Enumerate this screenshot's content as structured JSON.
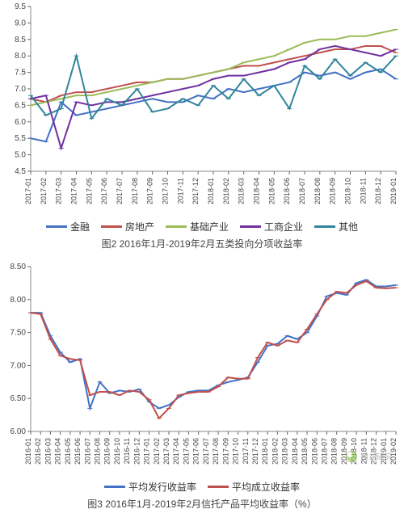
{
  "chart1": {
    "type": "line",
    "title": "图2 2016年1月-2019年2月五类投向分项收益率",
    "title_fontsize": 12,
    "background_color": "#ffffff",
    "grid_color": "#e0e0e0",
    "axis_color": "#888888",
    "line_width": 2,
    "marker_size": 3,
    "ylim": [
      4.5,
      9.5
    ],
    "ytick_step": 0.5,
    "y_decimals": 1,
    "x_rotation": -90,
    "categories": [
      "2017-01",
      "2017-02",
      "2017-03",
      "2017-04",
      "2017-05",
      "2017-06",
      "2017-07",
      "2017-08",
      "2017-09",
      "2017-10",
      "2017-11",
      "2017-12",
      "2018-01",
      "2018-02",
      "2018-03",
      "2018-04",
      "2018-05",
      "2018-06",
      "2018-07",
      "2018-08",
      "2018-09",
      "2018-10",
      "2018-11",
      "2018-12",
      "2019-01"
    ],
    "series": [
      {
        "name": "金融",
        "color": "#4472c4",
        "marker": "dash",
        "values": [
          5.5,
          5.4,
          6.6,
          6.2,
          6.3,
          6.4,
          6.5,
          6.6,
          6.7,
          6.6,
          6.6,
          6.8,
          6.7,
          7.0,
          6.9,
          7.0,
          7.1,
          7.2,
          7.5,
          7.4,
          7.5,
          7.3,
          7.5,
          7.6,
          7.3
        ]
      },
      {
        "name": "房地产",
        "color": "#c0504d",
        "marker": "dash",
        "values": [
          6.7,
          6.6,
          6.8,
          6.9,
          6.9,
          7.0,
          7.1,
          7.2,
          7.2,
          7.3,
          7.3,
          7.4,
          7.5,
          7.6,
          7.7,
          7.7,
          7.8,
          7.9,
          8.0,
          8.1,
          8.2,
          8.2,
          8.3,
          8.3,
          8.1
        ]
      },
      {
        "name": "基础产业",
        "color": "#9bbb59",
        "marker": "dash",
        "values": [
          6.5,
          6.6,
          6.7,
          6.8,
          6.8,
          6.9,
          7.0,
          7.1,
          7.2,
          7.3,
          7.3,
          7.4,
          7.5,
          7.6,
          7.8,
          7.9,
          8.0,
          8.2,
          8.4,
          8.5,
          8.5,
          8.6,
          8.6,
          8.7,
          8.8
        ]
      },
      {
        "name": "工商企业",
        "color": "#7030a0",
        "marker": "dash",
        "values": [
          6.7,
          6.8,
          5.2,
          6.6,
          6.5,
          6.6,
          6.6,
          6.7,
          6.8,
          6.9,
          7.0,
          7.1,
          7.3,
          7.4,
          7.4,
          7.5,
          7.6,
          7.8,
          7.9,
          8.2,
          8.3,
          8.2,
          8.1,
          8.0,
          8.2
        ]
      },
      {
        "name": "其他",
        "color": "#31859c",
        "marker": "dash",
        "values": [
          6.8,
          6.2,
          6.4,
          8.0,
          6.1,
          6.7,
          6.5,
          7.0,
          6.3,
          6.4,
          6.7,
          6.5,
          7.1,
          6.7,
          7.3,
          6.8,
          7.1,
          6.4,
          7.7,
          7.3,
          7.9,
          7.4,
          7.8,
          7.5,
          8.0
        ]
      }
    ]
  },
  "chart2": {
    "type": "line",
    "title": "图3  2016年1月-2019年2月信托产品平均收益率（%）",
    "title_fontsize": 12,
    "background_color": "#ffffff",
    "grid_color": "#e0e0e0",
    "axis_color": "#888888",
    "line_width": 2,
    "marker_size": 3,
    "ylim": [
      6.0,
      8.5
    ],
    "ytick_step": 0.5,
    "y_decimals": 2,
    "x_rotation": -90,
    "categories": [
      "2016-01",
      "2016-02",
      "2016-03",
      "2016-04",
      "2016-05",
      "2016-06",
      "2016-07",
      "2016-08",
      "2016-09",
      "2016-10",
      "2016-11",
      "2016-12",
      "2017-01",
      "2017-02",
      "2017-03",
      "2017-04",
      "2017-05",
      "2017-06",
      "2017-07",
      "2017-08",
      "2017-09",
      "2017-10",
      "2017-11",
      "2017-12",
      "2018-01",
      "2018-02",
      "2018-03",
      "2018-04",
      "2018-05",
      "2018-06",
      "2018-07",
      "2018-08",
      "2018-09",
      "2018-10",
      "2018-11",
      "2018-12",
      "2019-01",
      "2019-02"
    ],
    "series": [
      {
        "name": "平均发行收益率",
        "color": "#4472c4",
        "marker": "dash",
        "values": [
          7.8,
          7.8,
          7.45,
          7.2,
          7.05,
          7.1,
          6.35,
          6.75,
          6.58,
          6.62,
          6.6,
          6.64,
          6.45,
          6.35,
          6.4,
          6.52,
          6.6,
          6.62,
          6.62,
          6.7,
          6.75,
          6.78,
          6.82,
          7.05,
          7.3,
          7.33,
          7.45,
          7.4,
          7.5,
          7.75,
          8.05,
          8.1,
          8.07,
          8.25,
          8.3,
          8.2,
          8.2,
          8.22
        ]
      },
      {
        "name": "平均成立收益率",
        "color": "#c0504d",
        "marker": "dash",
        "values": [
          7.8,
          7.78,
          7.4,
          7.15,
          7.1,
          7.08,
          6.55,
          6.6,
          6.6,
          6.55,
          6.62,
          6.6,
          6.48,
          6.2,
          6.35,
          6.55,
          6.58,
          6.6,
          6.6,
          6.68,
          6.82,
          6.8,
          6.8,
          7.12,
          7.35,
          7.3,
          7.38,
          7.35,
          7.55,
          7.78,
          8.0,
          8.12,
          8.1,
          8.22,
          8.28,
          8.18,
          8.17,
          8.18
        ]
      }
    ]
  },
  "watermark": {
    "label": "用益研究"
  }
}
